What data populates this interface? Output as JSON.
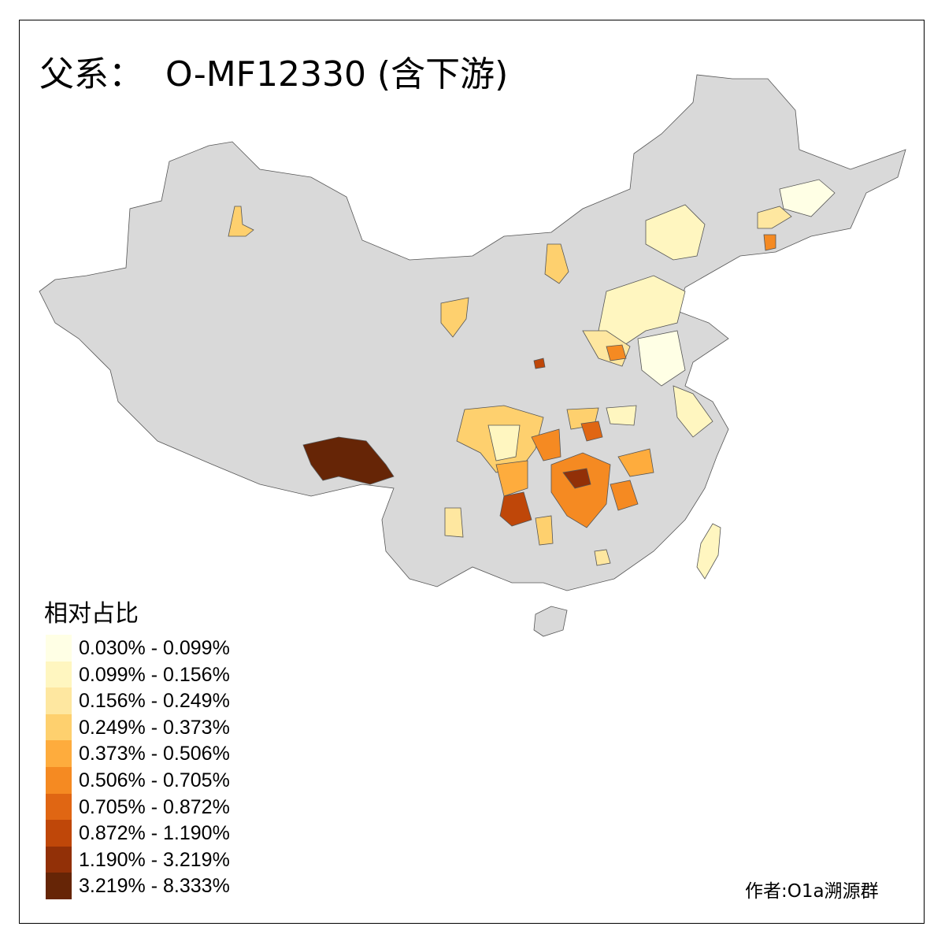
{
  "title": "父系：  O-MF12330 (含下游)",
  "legend": {
    "title": "相对占比",
    "items": [
      {
        "label": "0.030% - 0.099%",
        "color": "#FFFFE5"
      },
      {
        "label": "0.099% - 0.156%",
        "color": "#FFF6C0"
      },
      {
        "label": "0.156% - 0.249%",
        "color": "#FEE7A0"
      },
      {
        "label": "0.249% - 0.373%",
        "color": "#FED06E"
      },
      {
        "label": "0.373% - 0.506%",
        "color": "#FEAC3D"
      },
      {
        "label": "0.506% - 0.705%",
        "color": "#F58A22"
      },
      {
        "label": "0.705% - 0.872%",
        "color": "#E06613"
      },
      {
        "label": "0.872% - 1.190%",
        "color": "#BF4709"
      },
      {
        "label": "1.190% - 3.219%",
        "color": "#923007"
      },
      {
        "label": "3.219% - 8.333%",
        "color": "#662506"
      }
    ]
  },
  "base_color": "#D9D9D9",
  "author": "作者:O1a溯源群"
}
